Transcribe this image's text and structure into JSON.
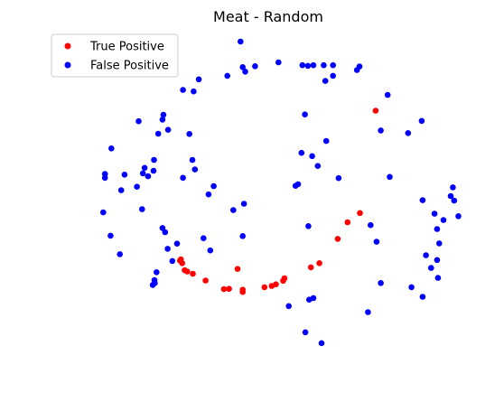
{
  "chart_data": {
    "type": "scatter",
    "title": "Meat - Random",
    "xlabel": "",
    "ylabel": "",
    "axes_visible": false,
    "grid": false,
    "xlim": [
      0,
      1
    ],
    "ylim": [
      0,
      1
    ],
    "legend_position": "top-left",
    "series": [
      {
        "name": "True Positive",
        "color": "#ff0000",
        "points": [
          [
            0.752,
            0.767
          ],
          [
            0.715,
            0.447
          ],
          [
            0.686,
            0.418
          ],
          [
            0.663,
            0.366
          ],
          [
            0.62,
            0.29
          ],
          [
            0.6,
            0.277
          ],
          [
            0.538,
            0.243
          ],
          [
            0.535,
            0.235
          ],
          [
            0.518,
            0.224
          ],
          [
            0.508,
            0.219
          ],
          [
            0.491,
            0.215
          ],
          [
            0.44,
            0.207
          ],
          [
            0.44,
            0.2
          ],
          [
            0.408,
            0.21
          ],
          [
            0.396,
            0.209
          ],
          [
            0.428,
            0.272
          ],
          [
            0.353,
            0.236
          ],
          [
            0.323,
            0.257
          ],
          [
            0.31,
            0.264
          ],
          [
            0.304,
            0.268
          ],
          [
            0.298,
            0.29
          ],
          [
            0.293,
            0.298
          ],
          [
            0.295,
            0.302
          ]
        ]
      },
      {
        "name": "False Positive",
        "color": "#0000ff",
        "points": [
          [
            0.435,
            0.983
          ],
          [
            0.524,
            0.918
          ],
          [
            0.44,
            0.903
          ],
          [
            0.446,
            0.889
          ],
          [
            0.469,
            0.906
          ],
          [
            0.58,
            0.909
          ],
          [
            0.593,
            0.907
          ],
          [
            0.606,
            0.909
          ],
          [
            0.63,
            0.909
          ],
          [
            0.652,
            0.909
          ],
          [
            0.404,
            0.876
          ],
          [
            0.634,
            0.86
          ],
          [
            0.652,
            0.876
          ],
          [
            0.708,
            0.894
          ],
          [
            0.714,
            0.905
          ],
          [
            0.337,
            0.865
          ],
          [
            0.325,
            0.827
          ],
          [
            0.3,
            0.832
          ],
          [
            0.78,
            0.816
          ],
          [
            0.586,
            0.755
          ],
          [
            0.252,
            0.739
          ],
          [
            0.254,
            0.754
          ],
          [
            0.196,
            0.734
          ],
          [
            0.86,
            0.735
          ],
          [
            0.764,
            0.705
          ],
          [
            0.265,
            0.707
          ],
          [
            0.315,
            0.694
          ],
          [
            0.242,
            0.695
          ],
          [
            0.636,
            0.672
          ],
          [
            0.828,
            0.697
          ],
          [
            0.132,
            0.649
          ],
          [
            0.578,
            0.635
          ],
          [
            0.603,
            0.625
          ],
          [
            0.616,
            0.594
          ],
          [
            0.322,
            0.613
          ],
          [
            0.232,
            0.613
          ],
          [
            0.21,
            0.588
          ],
          [
            0.206,
            0.571
          ],
          [
            0.163,
            0.567
          ],
          [
            0.117,
            0.569
          ],
          [
            0.117,
            0.557
          ],
          [
            0.328,
            0.583
          ],
          [
            0.218,
            0.562
          ],
          [
            0.231,
            0.579
          ],
          [
            0.3,
            0.557
          ],
          [
            0.665,
            0.556
          ],
          [
            0.785,
            0.56
          ],
          [
            0.57,
            0.537
          ],
          [
            0.564,
            0.532
          ],
          [
            0.372,
            0.531
          ],
          [
            0.155,
            0.518
          ],
          [
            0.192,
            0.529
          ],
          [
            0.36,
            0.505
          ],
          [
            0.933,
            0.527
          ],
          [
            0.928,
            0.5
          ],
          [
            0.936,
            0.486
          ],
          [
            0.443,
            0.476
          ],
          [
            0.418,
            0.456
          ],
          [
            0.113,
            0.449
          ],
          [
            0.204,
            0.459
          ],
          [
            0.862,
            0.487
          ],
          [
            0.89,
            0.445
          ],
          [
            0.911,
            0.425
          ],
          [
            0.946,
            0.437
          ],
          [
            0.594,
            0.406
          ],
          [
            0.74,
            0.409
          ],
          [
            0.896,
            0.397
          ],
          [
            0.252,
            0.4
          ],
          [
            0.258,
            0.387
          ],
          [
            0.44,
            0.375
          ],
          [
            0.13,
            0.376
          ],
          [
            0.286,
            0.351
          ],
          [
            0.348,
            0.368
          ],
          [
            0.754,
            0.357
          ],
          [
            0.901,
            0.352
          ],
          [
            0.264,
            0.335
          ],
          [
            0.364,
            0.33
          ],
          [
            0.87,
            0.315
          ],
          [
            0.152,
            0.318
          ],
          [
            0.275,
            0.297
          ],
          [
            0.896,
            0.3
          ],
          [
            0.238,
            0.262
          ],
          [
            0.882,
            0.275
          ],
          [
            0.233,
            0.237
          ],
          [
            0.229,
            0.222
          ],
          [
            0.234,
            0.228
          ],
          [
            0.764,
            0.228
          ],
          [
            0.836,
            0.215
          ],
          [
            0.898,
            0.244
          ],
          [
            0.862,
            0.185
          ],
          [
            0.606,
            0.181
          ],
          [
            0.596,
            0.176
          ],
          [
            0.548,
            0.156
          ],
          [
            0.734,
            0.137
          ],
          [
            0.587,
            0.074
          ],
          [
            0.625,
            0.04
          ]
        ]
      }
    ]
  }
}
